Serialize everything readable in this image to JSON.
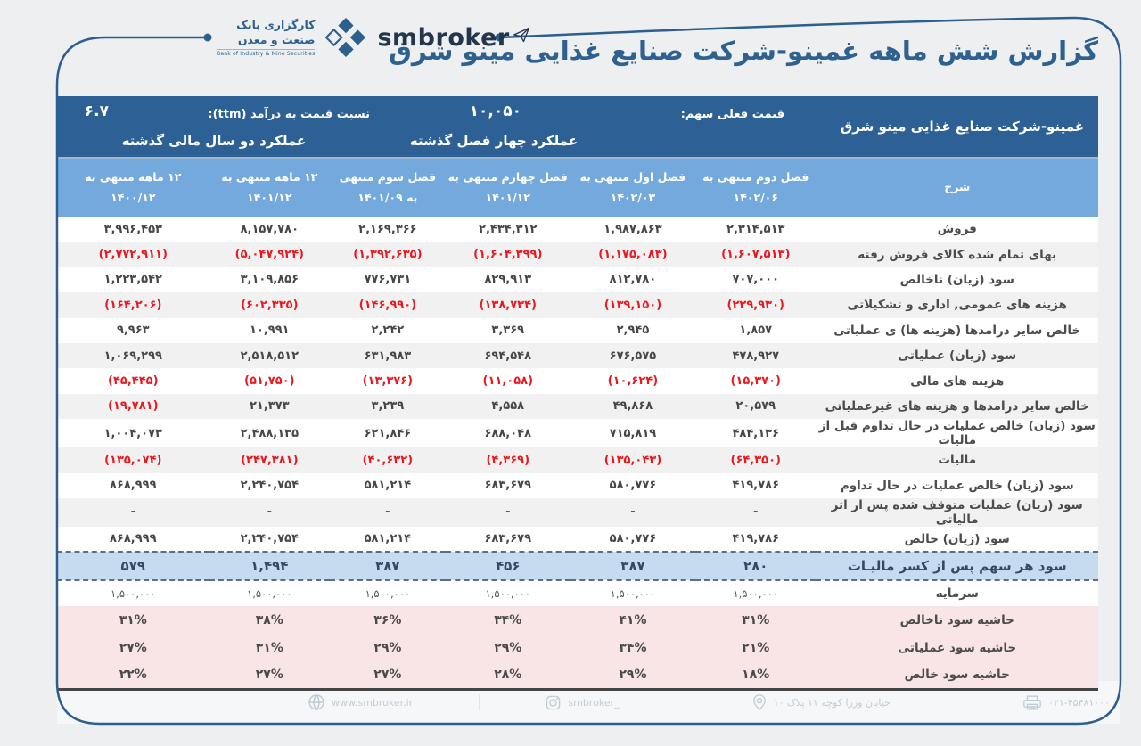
{
  "brand": {
    "bank_name_line1": "کارگزاری بانک",
    "bank_name_line2": "صنعت و معدن",
    "bank_name_en": "Bank of Industry & Mine Securities",
    "logo_text": "smbroker"
  },
  "title": "گزارش شش ماهه غمینو-شرکت صنایع غذایی مینو شرق",
  "info_band": {
    "company_name": "غمینو-شرکت صنایع غذایی مینو شرق",
    "current_price_label": "قیمت فعلی سهم:",
    "current_price_value": "۱۰,۰۵۰",
    "pe_label": "نسبت  قیمت به درآمد (ttm):",
    "pe_value": "۶.۷",
    "four_quarters_label": "عملکرد چهار فصل گذشته",
    "two_years_label": "عملکرد دو سال مالی گذشته"
  },
  "table": {
    "desc_header": "شرح",
    "columns": [
      {
        "line1": "فصل دوم منتهی به",
        "line2": "۱۴۰۲/۰۶"
      },
      {
        "line1": "فصل اول منتهی به",
        "line2": "۱۴۰۲/۰۳"
      },
      {
        "line1": "فصل چهارم منتهی به",
        "line2": "۱۴۰۱/۱۲"
      },
      {
        "line1": "فصل سوم منتهی",
        "line2": "به ۱۴۰۱/۰۹"
      },
      {
        "line1": "۱۲ ماهه منتهی به",
        "line2": "۱۴۰۱/۱۲"
      },
      {
        "line1": "۱۲ ماهه منتهی به",
        "line2": "۱۴۰۰/۱۲"
      }
    ],
    "rows": [
      {
        "type": "normal",
        "label": "فروش",
        "values": [
          "۲,۳۱۴,۵۱۳",
          "۱,۹۸۷,۸۶۳",
          "۲,۴۳۴,۳۱۲",
          "۲,۱۶۹,۳۶۶",
          "۸,۱۵۷,۷۸۰",
          "۳,۹۹۶,۴۵۳"
        ]
      },
      {
        "type": "normal",
        "label": "بهای تمام شده کالای فروش رفته",
        "values": [
          "(۱,۶۰۷,۵۱۳)",
          "(۱,۱۷۵,۰۸۳)",
          "(۱,۶۰۴,۳۹۹)",
          "(۱,۳۹۲,۶۳۵)",
          "(۵,۰۴۷,۹۲۴)",
          "(۲,۷۷۲,۹۱۱)"
        ]
      },
      {
        "type": "normal",
        "label": "سود (زیان) ناخالص",
        "values": [
          "۷۰۷,۰۰۰",
          "۸۱۲,۷۸۰",
          "۸۲۹,۹۱۳",
          "۷۷۶,۷۳۱",
          "۳,۱۰۹,۸۵۶",
          "۱,۲۲۳,۵۴۲"
        ]
      },
      {
        "type": "normal",
        "label": "هزینه های عمومی, اداری و تشکیلاتی",
        "values": [
          "(۲۲۹,۹۳۰)",
          "(۱۳۹,۱۵۰)",
          "(۱۳۸,۷۳۴)",
          "(۱۴۶,۹۹۰)",
          "(۶۰۲,۳۳۵)",
          "(۱۶۴,۲۰۶)"
        ]
      },
      {
        "type": "normal",
        "label": "خالص سایر درامدها (هزینه ها) ی عملیاتی",
        "values": [
          "۱,۸۵۷",
          "۲,۹۴۵",
          "۳,۳۶۹",
          "۲,۲۴۲",
          "۱۰,۹۹۱",
          "۹,۹۶۳"
        ]
      },
      {
        "type": "normal",
        "label": "سود (زیان) عملیاتی",
        "values": [
          "۴۷۸,۹۲۷",
          "۶۷۶,۵۷۵",
          "۶۹۴,۵۴۸",
          "۶۳۱,۹۸۳",
          "۲,۵۱۸,۵۱۲",
          "۱,۰۶۹,۲۹۹"
        ]
      },
      {
        "type": "normal",
        "label": "هزینه های مالی",
        "values": [
          "(۱۵,۳۷۰)",
          "(۱۰,۶۲۴)",
          "(۱۱,۰۵۸)",
          "(۱۳,۳۷۶)",
          "(۵۱,۷۵۰)",
          "(۴۵,۴۴۵)"
        ]
      },
      {
        "type": "normal",
        "label": "خالص سایر درامدها و هزینه های غیرعملیاتی",
        "values": [
          "۲۰,۵۷۹",
          "۴۹,۸۶۸",
          "۴,۵۵۸",
          "۳,۲۳۹",
          "۲۱,۳۷۳",
          "(۱۹,۷۸۱)"
        ]
      },
      {
        "type": "normal",
        "label": "سود (زیان) خالص عملیات در حال تداوم قبل از مالیات",
        "values": [
          "۴۸۴,۱۳۶",
          "۷۱۵,۸۱۹",
          "۶۸۸,۰۴۸",
          "۶۲۱,۸۴۶",
          "۲,۴۸۸,۱۳۵",
          "۱,۰۰۴,۰۷۳"
        ]
      },
      {
        "type": "normal",
        "label": "مالیات",
        "values": [
          "(۶۴,۳۵۰)",
          "(۱۳۵,۰۴۳)",
          "(۴,۳۶۹)",
          "(۴۰,۶۳۲)",
          "(۲۴۷,۳۸۱)",
          "(۱۳۵,۰۷۴)"
        ]
      },
      {
        "type": "normal",
        "label": "سود (زیان) خالص عملیات در حال تداوم",
        "values": [
          "۴۱۹,۷۸۶",
          "۵۸۰,۷۷۶",
          "۶۸۳,۶۷۹",
          "۵۸۱,۲۱۴",
          "۲,۲۴۰,۷۵۴",
          "۸۶۸,۹۹۹"
        ]
      },
      {
        "type": "normal",
        "label": "سود (زیان) عملیات متوقف شده پس از اثر مالیاتی",
        "values": [
          "-",
          "-",
          "-",
          "-",
          "-",
          "-"
        ]
      },
      {
        "type": "normal",
        "label": "سود (زیان) خالص",
        "values": [
          "۴۱۹,۷۸۶",
          "۵۸۰,۷۷۶",
          "۶۸۳,۶۷۹",
          "۵۸۱,۲۱۴",
          "۲,۲۴۰,۷۵۴",
          "۸۶۸,۹۹۹"
        ]
      },
      {
        "type": "eps",
        "label": "سود هر سهم پس از کسر مالیـات",
        "values": [
          "۲۸۰",
          "۳۸۷",
          "۴۵۶",
          "۳۸۷",
          "۱,۴۹۴",
          "۵۷۹"
        ]
      },
      {
        "type": "capital",
        "label": "سرمایه",
        "values": [
          "۱,۵۰۰,۰۰۰",
          "۱,۵۰۰,۰۰۰",
          "۱,۵۰۰,۰۰۰",
          "۱,۵۰۰,۰۰۰",
          "۱,۵۰۰,۰۰۰",
          "۱,۵۰۰,۰۰۰"
        ]
      },
      {
        "type": "margin",
        "label": "حاشیه سود ناخالص",
        "values": [
          "۳۱%",
          "۴۱%",
          "۳۴%",
          "۳۶%",
          "۳۸%",
          "۳۱%"
        ]
      },
      {
        "type": "margin",
        "label": "حاشیه سود عملیاتی",
        "values": [
          "۲۱%",
          "۳۴%",
          "۲۹%",
          "۲۹%",
          "۳۱%",
          "۲۷%"
        ]
      },
      {
        "type": "margin",
        "label": "حاشیه سود خالص",
        "values": [
          "۱۸%",
          "۲۹%",
          "۲۸%",
          "۲۷%",
          "۲۷%",
          "۲۲%"
        ]
      }
    ]
  },
  "footer": {
    "website": "www.smbroker.ir",
    "instagram": "smbroker_",
    "address": "خیابان وزرا کوچه ۱۱ پلاک ۱۰",
    "phone": "۰۲۱-۴۵۴۸۱۰۰۰"
  },
  "colors": {
    "accent_dark_blue": "#2d6094",
    "accent_light_blue": "#73a9dc",
    "eps_row_blue": "#c7dbf0",
    "margin_row_pink": "#f9e5e5",
    "negative_red": "#e8191f",
    "brand_navy": "#2e618f"
  }
}
